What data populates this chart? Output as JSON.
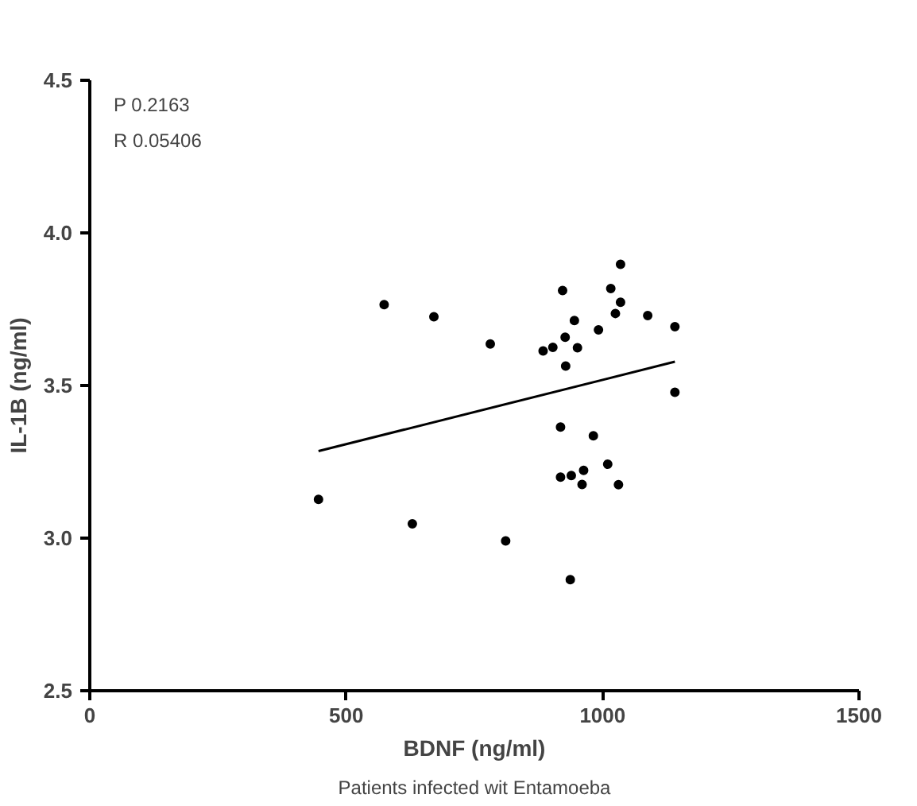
{
  "chart_data": {
    "type": "scatter",
    "xlabel": "BDNF (ng/ml)",
    "ylabel": "IL-1B (ng/ml)",
    "annotations": [
      {
        "text": "P 0.2163"
      },
      {
        "text": "R 0.05406"
      },
      "Patients infected wit Entamoeba"
    ],
    "xlim": [
      0,
      1500
    ],
    "ylim": [
      2.5,
      4.5
    ],
    "xticks": [
      0,
      500,
      1000,
      1500
    ],
    "yticks": [
      {
        "value": 2.5,
        "label": "2.5"
      },
      {
        "value": 3,
        "label": "3.0"
      },
      {
        "value": 3.5,
        "label": "3.5"
      },
      {
        "value": 4,
        "label": "4.0"
      },
      {
        "value": 4.5,
        "label": "4.5"
      }
    ],
    "grid": false,
    "series": [
      {
        "marker": "circle",
        "color": "#000000",
        "x": [
          446,
          574,
          671,
          629,
          781,
          811,
          884,
          903,
          922,
          927,
          945,
          951,
          928,
          992,
          1016,
          1025,
          1035,
          1088,
          918,
          982,
          918,
          939,
          963,
          960,
          1010,
          1031,
          937,
          1035,
          1141,
          1141
        ],
        "values": [
          3.127,
          3.765,
          3.725,
          3.047,
          3.636,
          2.991,
          3.613,
          3.625,
          3.811,
          3.658,
          3.713,
          3.624,
          3.564,
          3.682,
          3.818,
          3.736,
          3.773,
          3.729,
          3.364,
          3.335,
          3.2,
          3.205,
          3.222,
          3.176,
          3.242,
          3.175,
          2.864,
          3.897,
          3.693,
          3.478
        ]
      },
      {
        "type": "line",
        "color": "#000000",
        "x": [
          446,
          1141
        ],
        "values": [
          3.285,
          3.578
        ]
      }
    ]
  }
}
